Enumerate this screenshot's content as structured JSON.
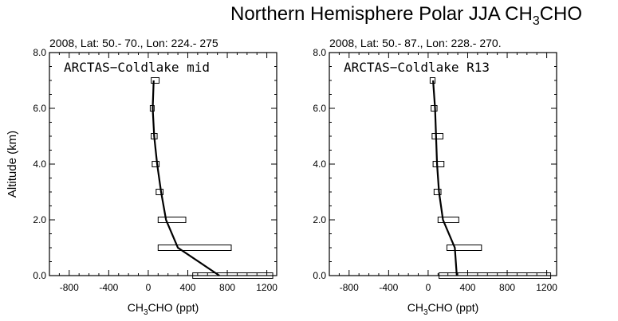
{
  "figure": {
    "title_main": "Northern Hemisphere Polar JJA CH",
    "title_sub": "3",
    "title_tail": "CHO"
  },
  "chart_data": [
    {
      "type": "bar",
      "subtitle": "2008, Lat:  50.- 70., Lon: 224.- 275",
      "panel_label": "ARCTAS−Coldlake mid",
      "ylabel": "Altitude (km)",
      "xlabel_main": "CH",
      "xlabel_sub": "3",
      "xlabel_tail": "CHO (ppt)",
      "xlim": [
        -1000,
        1300
      ],
      "ylim": [
        0,
        8
      ],
      "xticks": [
        -800,
        -400,
        0,
        400,
        800,
        1200
      ],
      "xtick_labels": [
        "-800",
        "-400",
        "0",
        "400",
        "800",
        "1200"
      ],
      "yticks": [
        0,
        2,
        4,
        6,
        8
      ],
      "ytick_labels": [
        "0.0",
        "2.0",
        "4.0",
        "6.0",
        "8.0"
      ],
      "boxes": [
        {
          "alt": 0,
          "x0": 450,
          "x1": 1260
        },
        {
          "alt": 1,
          "x0": 100,
          "x1": 840
        },
        {
          "alt": 2,
          "x0": 100,
          "x1": 380
        },
        {
          "alt": 3,
          "x0": 80,
          "x1": 150
        },
        {
          "alt": 4,
          "x0": 40,
          "x1": 110
        },
        {
          "alt": 5,
          "x0": 30,
          "x1": 90
        },
        {
          "alt": 6,
          "x0": 20,
          "x1": 60
        },
        {
          "alt": 7,
          "x0": 30,
          "x1": 110
        }
      ],
      "line": {
        "x": [
          720,
          300,
          180,
          130,
          90,
          60,
          45,
          55
        ],
        "y": [
          0,
          1,
          2,
          3,
          4,
          5,
          6,
          7
        ]
      }
    },
    {
      "type": "bar",
      "subtitle": "2008, Lat:  50.- 87., Lon: 228.- 270.",
      "panel_label": "ARCTAS−Coldlake R13",
      "ylabel": "",
      "xlabel_main": "CH",
      "xlabel_sub": "3",
      "xlabel_tail": "CHO (ppt)",
      "xlim": [
        -1000,
        1300
      ],
      "ylim": [
        0,
        8
      ],
      "xticks": [
        -800,
        -400,
        0,
        400,
        800,
        1200
      ],
      "xtick_labels": [
        "-800",
        "-400",
        "0",
        "400",
        "800",
        "1200"
      ],
      "yticks": [
        0,
        2,
        4,
        6,
        8
      ],
      "ytick_labels": [
        "0.0",
        "2.0",
        "4.0",
        "6.0",
        "8.0"
      ],
      "boxes": [
        {
          "alt": 0,
          "x0": 110,
          "x1": 1240
        },
        {
          "alt": 1,
          "x0": 190,
          "x1": 540
        },
        {
          "alt": 2,
          "x0": 100,
          "x1": 310
        },
        {
          "alt": 3,
          "x0": 60,
          "x1": 130
        },
        {
          "alt": 4,
          "x0": 50,
          "x1": 160
        },
        {
          "alt": 5,
          "x0": 40,
          "x1": 150
        },
        {
          "alt": 6,
          "x0": 30,
          "x1": 90
        },
        {
          "alt": 7,
          "x0": 20,
          "x1": 70
        }
      ],
      "line": {
        "x": [
          290,
          270,
          150,
          110,
          90,
          80,
          70,
          50
        ],
        "y": [
          0,
          1,
          2,
          3,
          4,
          5,
          6,
          7
        ]
      }
    }
  ]
}
